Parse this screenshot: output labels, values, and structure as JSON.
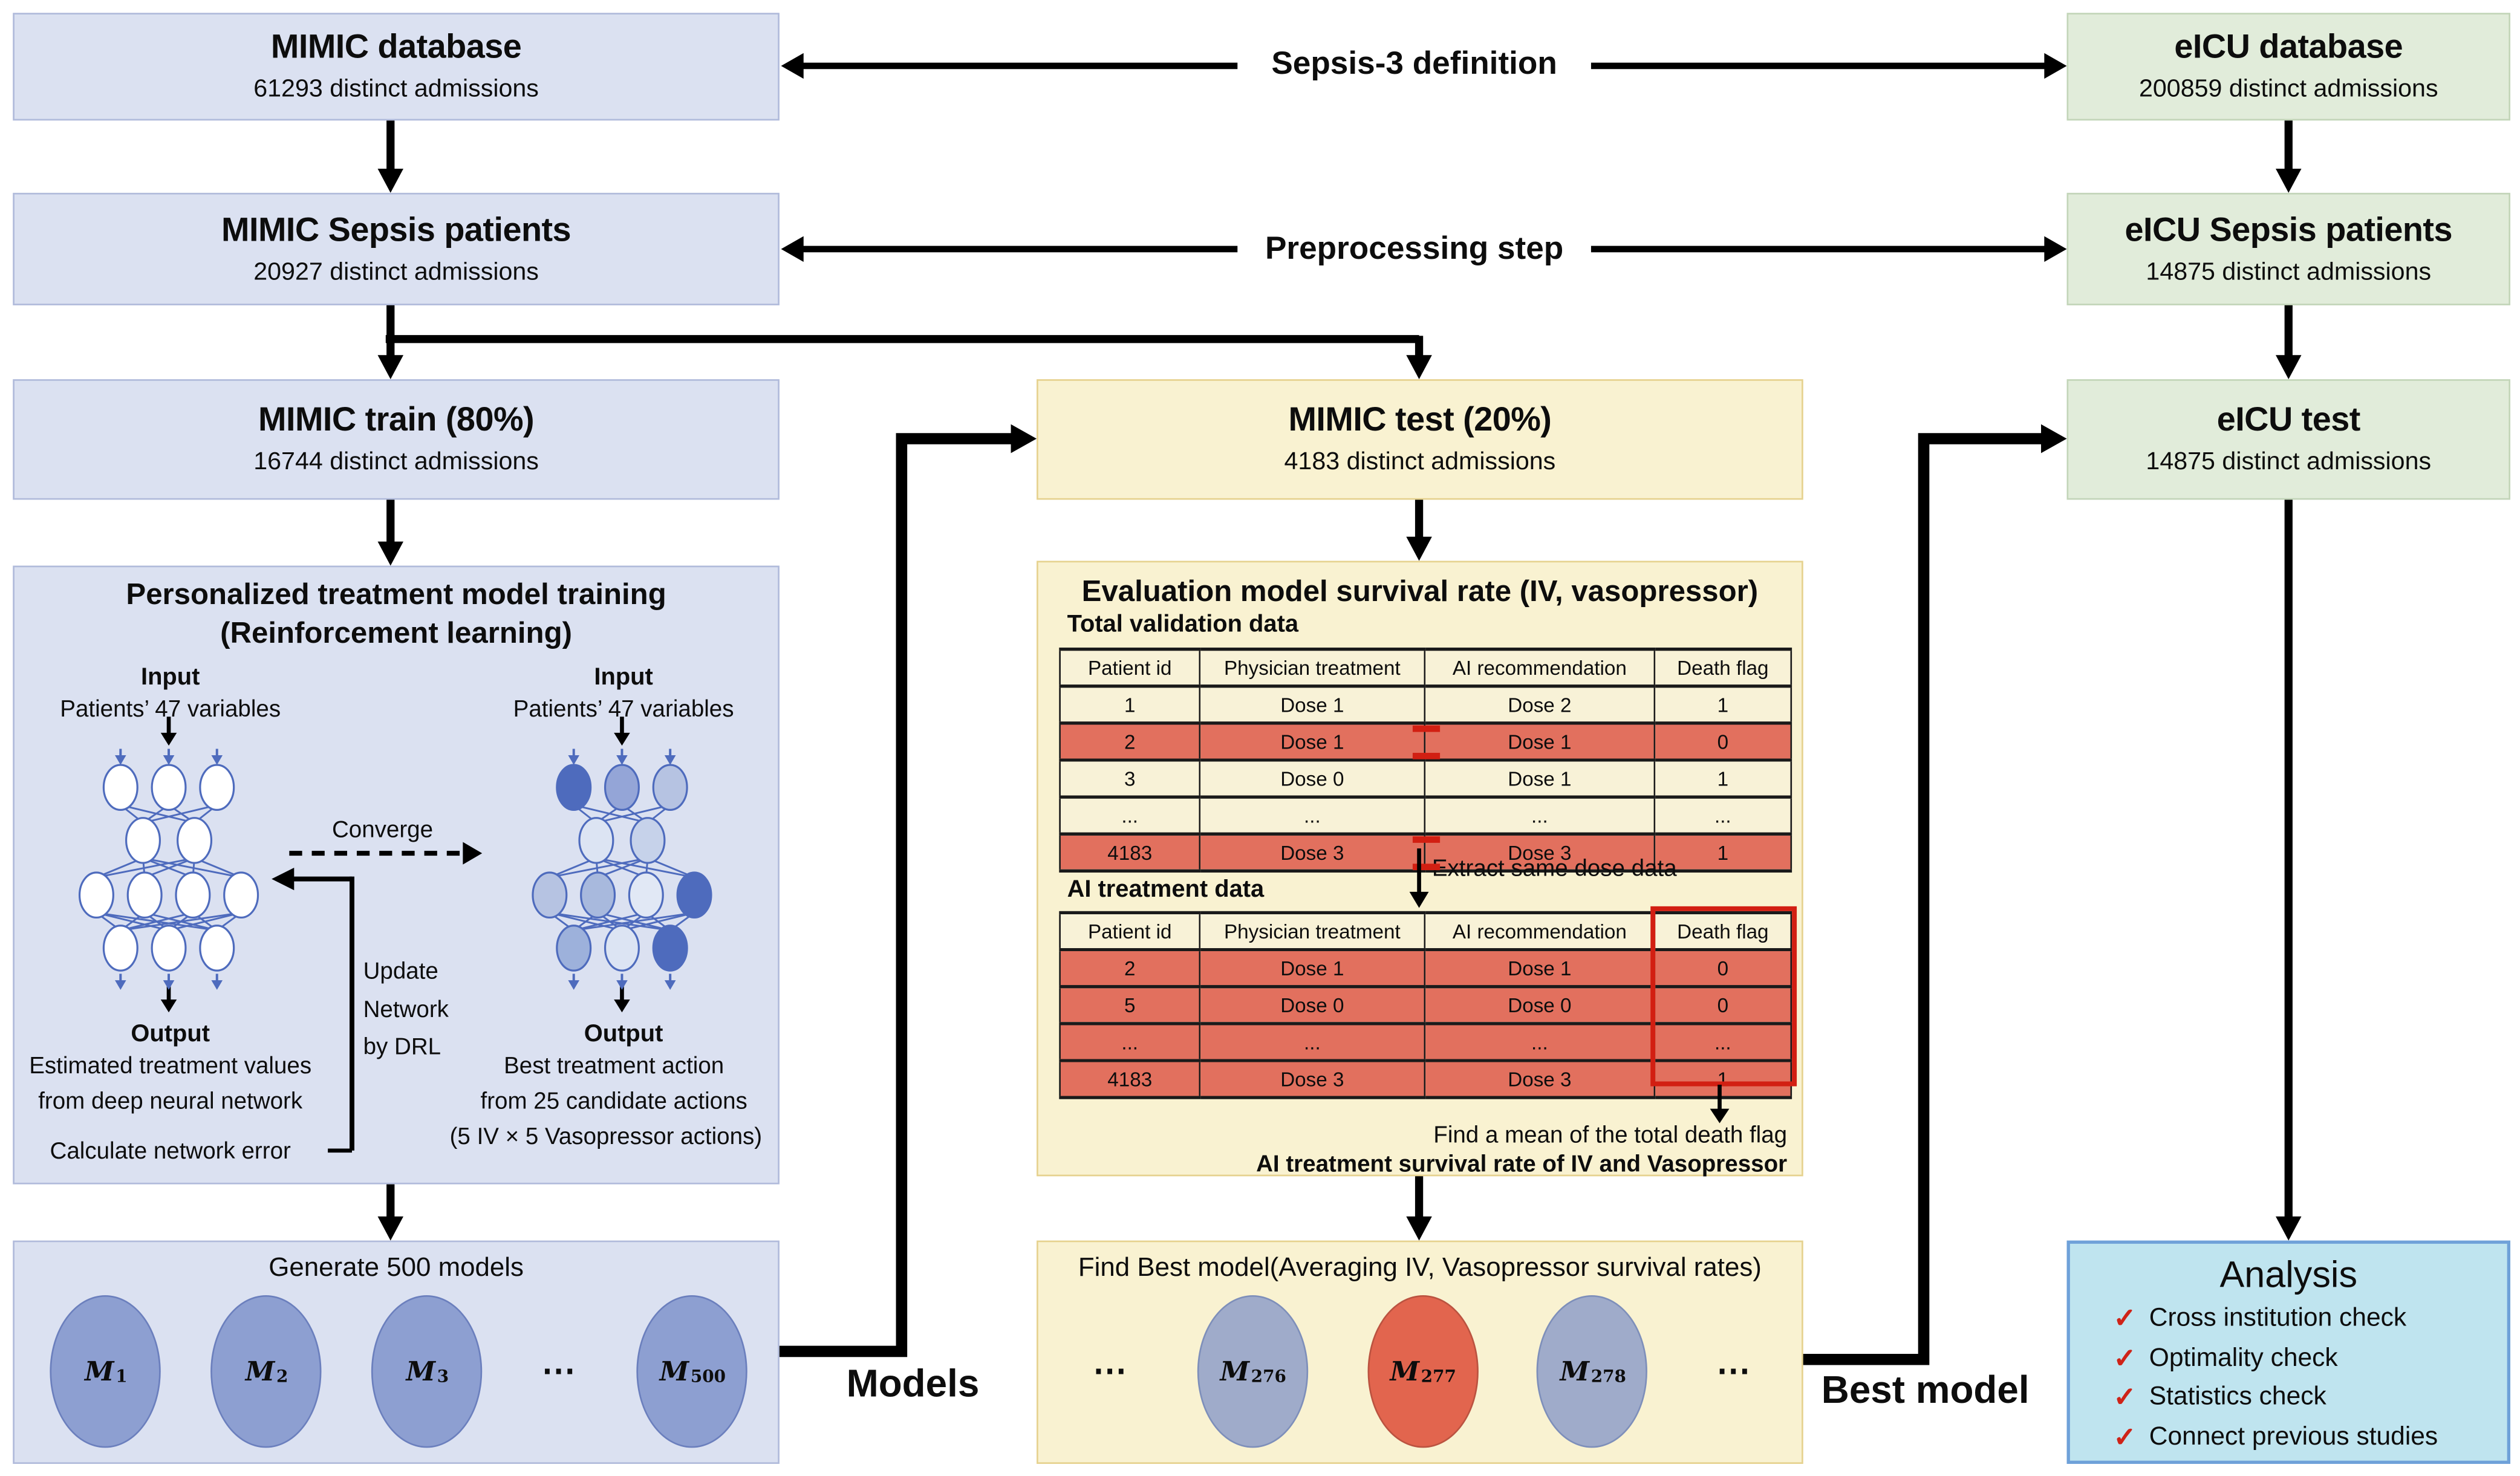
{
  "boxes": {
    "mimic_database": {
      "title": "MIMIC database",
      "subtitle": "61293 distinct admissions"
    },
    "mimic_sepsis": {
      "title": "MIMIC Sepsis patients",
      "subtitle": "20927 distinct admissions"
    },
    "mimic_train": {
      "title": "MIMIC train (80%)",
      "subtitle": "16744 distinct admissions"
    },
    "mimic_test": {
      "title": "MIMIC test (20%)",
      "subtitle": "4183 distinct admissions"
    },
    "eicu_database": {
      "title": "eICU database",
      "subtitle": "200859 distinct admissions"
    },
    "eicu_sepsis": {
      "title": "eICU Sepsis patients",
      "subtitle": "14875 distinct admissions"
    },
    "eicu_test": {
      "title": "eICU test",
      "subtitle": "14875 distinct admissions"
    }
  },
  "labels": {
    "sepsis3": "Sepsis-3 definition",
    "preprocessing": "Preprocessing step",
    "models": "Models",
    "best_model": "Best model"
  },
  "training": {
    "title1": "Personalized treatment model training",
    "title2": "(Reinforcement learning)",
    "converge": "Converge",
    "update1": "Update",
    "update2": "Network",
    "update3": "by DRL",
    "left": {
      "input_title": "Input",
      "input_sub": "Patients’ 47 variables",
      "output_title": "Output",
      "out1": "Estimated treatment values",
      "out2": "from deep neural network",
      "error_label": "Calculate network error"
    },
    "right": {
      "input_title": "Input",
      "input_sub": "Patients’ 47 variables",
      "output_title": "Output",
      "out1": "Best treatment action",
      "out2": "from 25 candidate actions",
      "out3": "(5 IV × 5 Vasopressor actions)"
    }
  },
  "generate": {
    "title": "Generate 500 models",
    "models": [
      {
        "m": "M",
        "sub": "1"
      },
      {
        "m": "M",
        "sub": "2"
      },
      {
        "m": "M",
        "sub": "3"
      },
      {
        "dots": "⋯"
      },
      {
        "m": "M",
        "sub": "500"
      }
    ]
  },
  "evaluation": {
    "title": "Evaluation model survival rate (IV, vasopressor)",
    "total_label": "Total validation data",
    "extract_label": "Extract same dose data",
    "ai_label": "AI treatment data",
    "mean_label": "Find a mean of the total death flag",
    "survival_label": "AI treatment survival rate of IV and Vasopressor",
    "total_table": {
      "headers": [
        "Patient id",
        "Physician treatment",
        "AI recommendation",
        "Death flag"
      ],
      "rows": [
        {
          "cells": [
            "1",
            "Dose 1",
            "Dose 2",
            "1"
          ],
          "highlight": false,
          "eq": false
        },
        {
          "cells": [
            "2",
            "Dose 1",
            "Dose 1",
            "0"
          ],
          "highlight": true,
          "eq": true
        },
        {
          "cells": [
            "3",
            "Dose 0",
            "Dose 1",
            "1"
          ],
          "highlight": false,
          "eq": false
        },
        {
          "cells": [
            "...",
            "...",
            "...",
            "..."
          ],
          "highlight": false,
          "eq": false
        },
        {
          "cells": [
            "4183",
            "Dose 3",
            "Dose 3",
            "1"
          ],
          "highlight": true,
          "eq": true
        }
      ]
    },
    "ai_table": {
      "headers": [
        "Patient id",
        "Physician treatment",
        "AI recommendation",
        "Death flag"
      ],
      "rows": [
        {
          "cells": [
            "2",
            "Dose 1",
            "Dose 1",
            "0"
          ],
          "highlight": true,
          "eq": false
        },
        {
          "cells": [
            "5",
            "Dose 0",
            "Dose 0",
            "0"
          ],
          "highlight": true,
          "eq": false
        },
        {
          "cells": [
            "...",
            "...",
            "...",
            "..."
          ],
          "highlight": true,
          "eq": false
        },
        {
          "cells": [
            "4183",
            "Dose 3",
            "Dose 3",
            "1"
          ],
          "highlight": true,
          "eq": false
        }
      ]
    }
  },
  "find_best": {
    "title": "Find Best model(Averaging IV, Vasopressor survival rates)",
    "models": [
      {
        "dots": "⋯"
      },
      {
        "m": "M",
        "sub": "276"
      },
      {
        "m": "M",
        "sub": "277",
        "best": true
      },
      {
        "m": "M",
        "sub": "278"
      },
      {
        "dots": "⋯"
      }
    ]
  },
  "analysis": {
    "title": "Analysis",
    "check": "✓",
    "items": [
      "Cross institution check",
      "Optimality check",
      "Statistics check",
      "Connect previous studies"
    ]
  },
  "colors": {
    "lavender": "#dbe1f1",
    "green": "#e1ecda",
    "yellow": "#f9f2d1",
    "cyan": "#bfe4ef",
    "cream": "#f8f2d7",
    "redrow": "#e2705e",
    "redaccent": "#d21f12",
    "check": "#cf2318",
    "circleblue": "#8d9fd1",
    "circlegray": "#9fabca",
    "circlered": "#e2654e",
    "nodeblue": "#4e6bbd"
  }
}
